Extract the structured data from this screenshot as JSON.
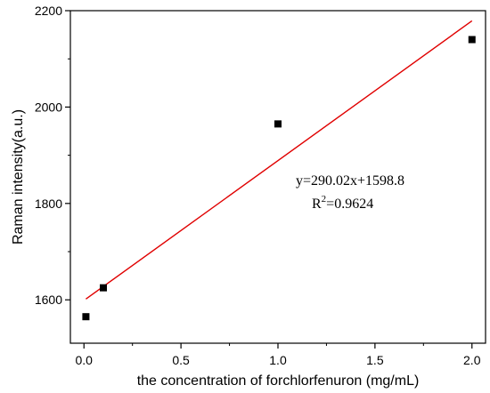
{
  "chart_data": {
    "type": "scatter",
    "title": "",
    "xlabel": "the concentration of forchlorfenuron (mg/mL)",
    "ylabel": "Raman intensity(a.u.)",
    "xlim": [
      -0.07,
      2.07
    ],
    "ylim": [
      1510,
      2200
    ],
    "x_ticks": [
      0.0,
      0.5,
      1.0,
      1.5,
      2.0
    ],
    "x_tick_labels": [
      "0.0",
      "0.5",
      "1.0",
      "1.5",
      "2.0"
    ],
    "y_ticks": [
      1600,
      1800,
      2000,
      2200
    ],
    "y_tick_labels": [
      "1600",
      "1800",
      "2000",
      "2200"
    ],
    "points": [
      {
        "x": 0.01,
        "y": 1565
      },
      {
        "x": 0.1,
        "y": 1625
      },
      {
        "x": 1.0,
        "y": 1965
      },
      {
        "x": 2.0,
        "y": 2140
      }
    ],
    "fit": {
      "slope": 290.02,
      "intercept": 1598.8,
      "x_start": 0.01,
      "x_end": 2.0
    },
    "annotation": {
      "equation": "y=290.02x+1598.8",
      "r2_prefix": "R",
      "r2_sup": "2",
      "r2_value": "=0.9624"
    },
    "grid": false,
    "legend": "none",
    "colors": {
      "points": "#000000",
      "fit_line": "#e00000",
      "axes": "#000000"
    }
  }
}
